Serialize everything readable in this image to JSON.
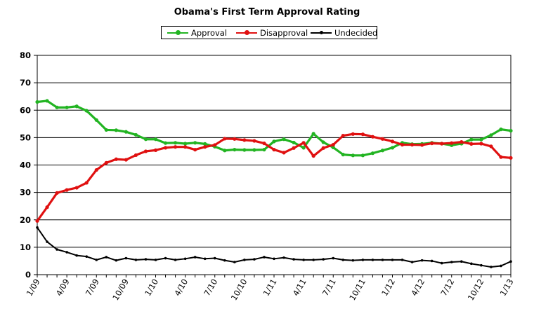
{
  "chart_data": {
    "type": "line",
    "title": "Obama's First Term Approval Rating",
    "xlabel": "",
    "ylabel": "",
    "ylim": [
      0,
      80
    ],
    "yticks": [
      "0",
      "10",
      "20",
      "30",
      "40",
      "50",
      "60",
      "70",
      "80"
    ],
    "grid": true,
    "legend_position": "top-center",
    "x": [
      "1/09",
      "2/09",
      "3/09",
      "4/09",
      "5/09",
      "6/09",
      "7/09",
      "8/09",
      "9/09",
      "10/09",
      "11/09",
      "12/09",
      "1/10",
      "2/10",
      "3/10",
      "4/10",
      "5/10",
      "6/10",
      "7/10",
      "8/10",
      "9/10",
      "10/10",
      "11/10",
      "12/10",
      "1/11",
      "2/11",
      "3/11",
      "4/11",
      "5/11",
      "6/11",
      "7/11",
      "8/11",
      "9/11",
      "10/11",
      "11/11",
      "12/11",
      "1/12",
      "2/12",
      "3/12",
      "4/12",
      "5/12",
      "6/12",
      "7/12",
      "8/12",
      "9/12",
      "10/12",
      "11/12",
      "12/12",
      "1/13"
    ],
    "xtick_labels": [
      "1/09",
      "4/09",
      "7/09",
      "10/09",
      "1/10",
      "4/10",
      "7/10",
      "10/10",
      "1/11",
      "4/11",
      "7/11",
      "10/11",
      "1/12",
      "4/12",
      "7/12",
      "10/12",
      "1/13"
    ],
    "series": [
      {
        "name": "Approval",
        "color": "#22b422",
        "values": [
          63.0,
          63.4,
          61.0,
          61.0,
          61.4,
          59.8,
          56.4,
          52.8,
          52.7,
          52.1,
          51.0,
          49.4,
          49.4,
          48.0,
          48.1,
          47.8,
          48.1,
          47.7,
          46.7,
          45.3,
          45.6,
          45.5,
          45.5,
          45.6,
          48.6,
          49.4,
          48.2,
          46.3,
          51.4,
          48.3,
          46.4,
          43.8,
          43.5,
          43.5,
          44.3,
          45.3,
          46.3,
          48.1,
          47.6,
          47.7,
          48.1,
          47.8,
          47.2,
          47.8,
          49.3,
          49.3,
          50.9,
          53.0,
          52.5
        ]
      },
      {
        "name": "Disapproval",
        "color": "#e01010",
        "values": [
          19.6,
          24.6,
          29.8,
          30.9,
          31.7,
          33.5,
          38.2,
          40.8,
          42.1,
          41.9,
          43.6,
          45.0,
          45.4,
          46.3,
          46.6,
          46.6,
          45.6,
          46.6,
          47.3,
          49.6,
          49.5,
          49.1,
          48.8,
          47.9,
          45.6,
          44.5,
          46.2,
          48.1,
          43.3,
          46.2,
          47.4,
          50.7,
          51.3,
          51.2,
          50.3,
          49.5,
          48.6,
          47.4,
          47.4,
          47.3,
          47.9,
          47.8,
          48.0,
          48.4,
          47.7,
          47.8,
          46.8,
          42.9,
          42.6
        ]
      },
      {
        "name": "Undecided",
        "color": "#000000",
        "values": [
          17.2,
          12.0,
          9.2,
          8.2,
          7.0,
          6.6,
          5.4,
          6.4,
          5.2,
          6.0,
          5.4,
          5.6,
          5.4,
          6.0,
          5.4,
          5.8,
          6.4,
          5.8,
          6.0,
          5.2,
          4.6,
          5.4,
          5.6,
          6.4,
          5.8,
          6.2,
          5.6,
          5.4,
          5.4,
          5.6,
          6.0,
          5.4,
          5.2,
          5.4,
          5.4,
          5.4,
          5.4,
          5.4,
          4.6,
          5.2,
          5.0,
          4.2,
          4.6,
          4.8,
          4.0,
          3.4,
          2.8,
          3.2,
          4.8
        ]
      }
    ]
  }
}
